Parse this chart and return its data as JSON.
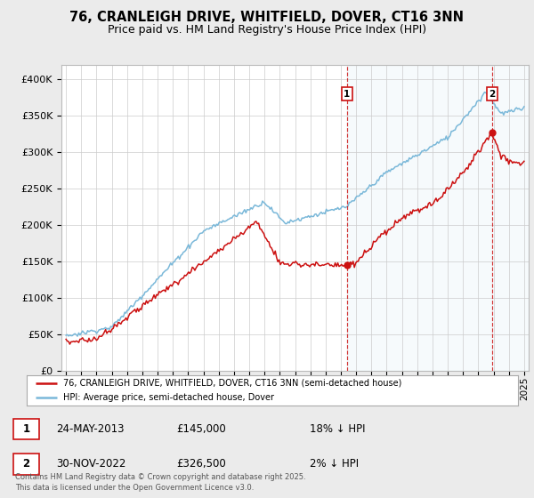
{
  "title": "76, CRANLEIGH DRIVE, WHITFIELD, DOVER, CT16 3NN",
  "subtitle": "Price paid vs. HM Land Registry's House Price Index (HPI)",
  "title_fontsize": 10.5,
  "subtitle_fontsize": 9,
  "ylabel_ticks": [
    "£0",
    "£50K",
    "£100K",
    "£150K",
    "£200K",
    "£250K",
    "£300K",
    "£350K",
    "£400K"
  ],
  "ytick_values": [
    0,
    50000,
    100000,
    150000,
    200000,
    250000,
    300000,
    350000,
    400000
  ],
  "ylim": [
    0,
    420000
  ],
  "xlim_start": 1994.7,
  "xlim_end": 2025.3,
  "xticks": [
    1995,
    1996,
    1997,
    1998,
    1999,
    2000,
    2001,
    2002,
    2003,
    2004,
    2005,
    2006,
    2007,
    2008,
    2009,
    2010,
    2011,
    2012,
    2013,
    2014,
    2015,
    2016,
    2017,
    2018,
    2019,
    2020,
    2021,
    2022,
    2023,
    2024,
    2025
  ],
  "hpi_color": "#7ab8d9",
  "hpi_fill_color": "#dceef7",
  "price_color": "#cc1111",
  "marker1_x": 2013.4,
  "marker1_y": 145000,
  "marker2_x": 2022.92,
  "marker2_y": 326500,
  "marker1_label": "1",
  "marker2_label": "2",
  "annotation1_date": "24-MAY-2013",
  "annotation1_price": "£145,000",
  "annotation1_hpi": "18% ↓ HPI",
  "annotation2_date": "30-NOV-2022",
  "annotation2_price": "£326,500",
  "annotation2_hpi": "2% ↓ HPI",
  "legend_line1": "76, CRANLEIGH DRIVE, WHITFIELD, DOVER, CT16 3NN (semi-detached house)",
  "legend_line2": "HPI: Average price, semi-detached house, Dover",
  "footnote": "Contains HM Land Registry data © Crown copyright and database right 2025.\nThis data is licensed under the Open Government Licence v3.0.",
  "background_color": "#ebebeb",
  "plot_bg_color": "#ffffff",
  "grid_color": "#cccccc"
}
